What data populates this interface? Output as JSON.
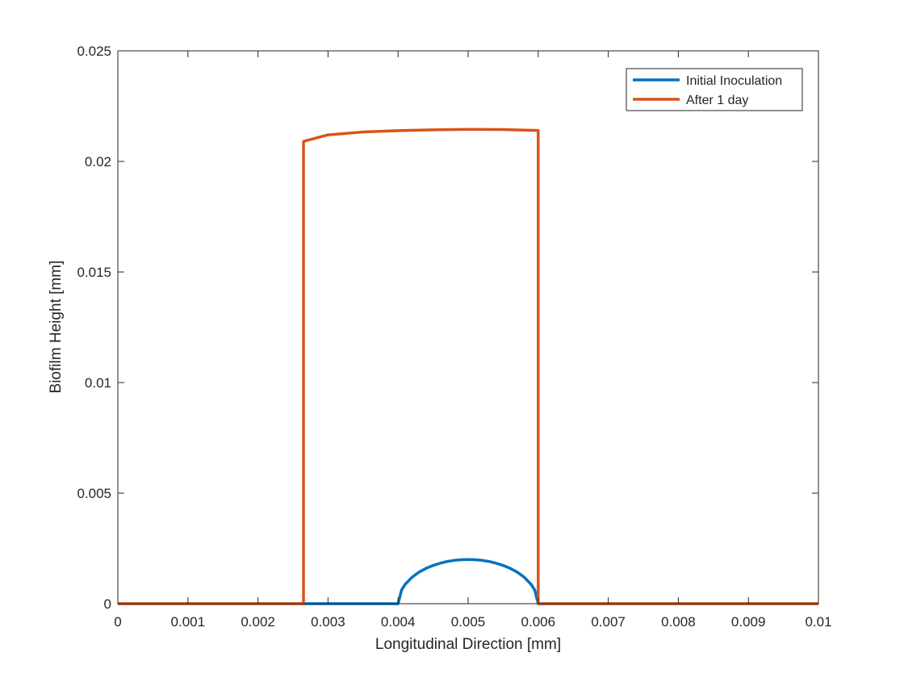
{
  "chart_data": {
    "type": "line",
    "title": "",
    "xlabel": "Longitudinal Direction [mm]",
    "ylabel": "Biofilm Height [mm]",
    "xlim": [
      0,
      0.01
    ],
    "ylim": [
      0,
      0.025
    ],
    "xticks": [
      0,
      0.001,
      0.002,
      0.003,
      0.004,
      0.005,
      0.006,
      0.007,
      0.008,
      0.009,
      0.01
    ],
    "xtick_labels": [
      "0",
      "0.001",
      "0.002",
      "0.003",
      "0.004",
      "0.005",
      "0.006",
      "0.007",
      "0.008",
      "0.009",
      "0.01"
    ],
    "yticks": [
      0,
      0.005,
      0.01,
      0.015,
      0.02,
      0.025
    ],
    "ytick_labels": [
      "0",
      "0.005",
      "0.01",
      "0.015",
      "0.02",
      "0.025"
    ],
    "grid": false,
    "box": true,
    "legend_position": "top-right",
    "series": [
      {
        "name": "Initial Inoculation",
        "color": "#0072BD",
        "x": [
          0,
          0.004,
          0.00405,
          0.0041,
          0.0042,
          0.0043,
          0.0044,
          0.0045,
          0.0046,
          0.0047,
          0.0048,
          0.0049,
          0.005,
          0.0051,
          0.0052,
          0.0053,
          0.0054,
          0.0055,
          0.0056,
          0.0057,
          0.0058,
          0.0059,
          0.00595,
          0.006,
          0.01
        ],
        "y": [
          0,
          0,
          0.000624,
          0.000872,
          0.0012,
          0.00143,
          0.0016,
          0.00173,
          0.00183,
          0.00191,
          0.00196,
          0.00199,
          0.002,
          0.00199,
          0.00196,
          0.00191,
          0.00183,
          0.00173,
          0.0016,
          0.00143,
          0.0012,
          0.000872,
          0.000624,
          0,
          0
        ]
      },
      {
        "name": "After 1 day",
        "color": "#D95319",
        "x": [
          0,
          0.00265,
          0.00265,
          0.0027,
          0.003,
          0.0035,
          0.004,
          0.0045,
          0.005,
          0.0055,
          0.006,
          0.006,
          0.01
        ],
        "y": [
          0,
          0,
          0.0209,
          0.02095,
          0.0212,
          0.02133,
          0.02139,
          0.02143,
          0.02145,
          0.02144,
          0.0214,
          0,
          0
        ]
      }
    ]
  }
}
